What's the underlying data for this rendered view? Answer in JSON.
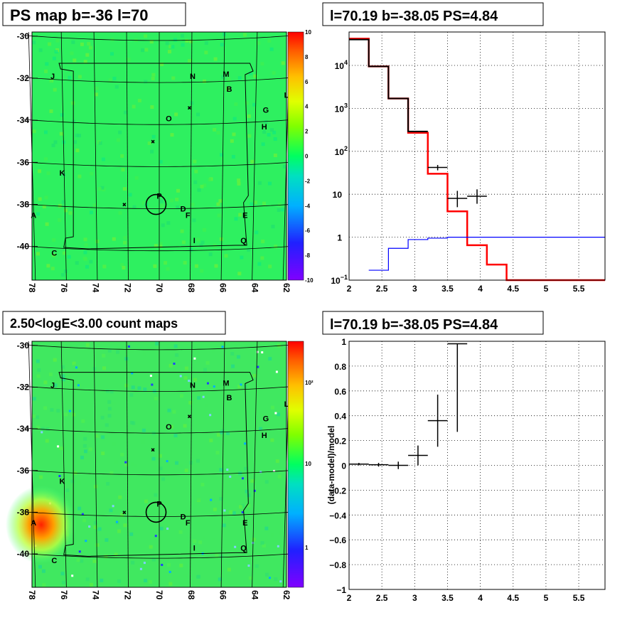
{
  "chart_data": [
    {
      "type": "heatmap",
      "title": "PS map b=-36 l=70",
      "x_ticks": [
        "78",
        "76",
        "74",
        "72",
        "70",
        "68",
        "66",
        "64",
        "62"
      ],
      "y_ticks": [
        "-30",
        "-32",
        "-34",
        "-36",
        "-38",
        "-40"
      ],
      "xlim": [
        78,
        62
      ],
      "ylim": [
        -41.6,
        -29.8
      ],
      "colorbar_ticks": [
        "10",
        "8",
        "6",
        "4",
        "2",
        "0",
        "-2",
        "-4",
        "-6",
        "-8",
        "-10"
      ],
      "zlim": [
        -10,
        10
      ],
      "sources": [
        {
          "label": "J",
          "l": 76.7,
          "b": -31.9
        },
        {
          "label": "N",
          "l": 67.9,
          "b": -31.9
        },
        {
          "label": "M",
          "l": 65.8,
          "b": -31.8
        },
        {
          "label": "B",
          "l": 65.6,
          "b": -32.5
        },
        {
          "label": "L",
          "l": 62.0,
          "b": -32.8
        },
        {
          "label": "G",
          "l": 63.3,
          "b": -33.5
        },
        {
          "label": "O",
          "l": 69.4,
          "b": -33.9
        },
        {
          "label": "H",
          "l": 63.4,
          "b": -34.3
        },
        {
          "label": "K",
          "l": 76.1,
          "b": -36.5
        },
        {
          "label": "P",
          "l": 70.0,
          "b": -37.6
        },
        {
          "label": "D",
          "l": 68.5,
          "b": -38.2
        },
        {
          "label": "F",
          "l": 68.2,
          "b": -38.5
        },
        {
          "label": "A",
          "l": 77.9,
          "b": -38.5
        },
        {
          "label": "E",
          "l": 64.6,
          "b": -38.5
        },
        {
          "label": "I",
          "l": 67.8,
          "b": -39.7
        },
        {
          "label": "Q",
          "l": 64.7,
          "b": -39.7
        },
        {
          "label": "C",
          "l": 76.6,
          "b": -40.3
        }
      ]
    },
    {
      "type": "line",
      "title": "l=70.19 b=-38.05 PS=4.84",
      "x_ticks": [
        "2",
        "2.5",
        "3",
        "3.5",
        "4",
        "4.5",
        "5",
        "5.5"
      ],
      "y_ticks": [
        "10^1",
        "10^4",
        "10^3",
        "10^2",
        "10",
        "1",
        "10^-1"
      ],
      "xlim": [
        2,
        5.9
      ],
      "ylim": [
        0.1,
        60000
      ],
      "yscale": "log",
      "grid": true,
      "series": [
        {
          "color": "#ff0000",
          "steps": [
            [
              2.0,
              2.3,
              42000
            ],
            [
              2.3,
              2.6,
              9500
            ],
            [
              2.6,
              2.9,
              1700
            ],
            [
              2.9,
              3.2,
              270
            ],
            [
              3.2,
              3.5,
              30
            ],
            [
              3.5,
              3.8,
              4
            ],
            [
              3.8,
              4.1,
              0.65
            ],
            [
              4.1,
              4.4,
              0.23
            ],
            [
              4.4,
              5.9,
              0.1
            ]
          ]
        },
        {
          "color": "#000000",
          "steps": [
            [
              2.0,
              2.3,
              40000
            ],
            [
              2.3,
              2.6,
              9500
            ],
            [
              2.6,
              2.9,
              1700
            ],
            [
              2.9,
              3.2,
              290
            ]
          ]
        },
        {
          "color": "#0000ff",
          "steps": [
            [
              2.3,
              2.6,
              0.17
            ],
            [
              2.6,
              2.9,
              0.55
            ],
            [
              2.9,
              3.2,
              0.88
            ],
            [
              3.2,
              3.5,
              0.95
            ],
            [
              3.5,
              5.9,
              1.0
            ]
          ]
        }
      ],
      "points": [
        {
          "x": 3.35,
          "y": 42,
          "xerr": 0.15,
          "ylo": 36,
          "yhi": 48
        },
        {
          "x": 3.65,
          "y": 8,
          "xerr": 0.15,
          "ylo": 5,
          "yhi": 12
        },
        {
          "x": 3.95,
          "y": 9,
          "xerr": 0.15,
          "ylo": 6,
          "yhi": 13
        }
      ]
    },
    {
      "type": "heatmap",
      "title": "2.50<logE<3.00 count maps",
      "x_ticks": [
        "78",
        "76",
        "74",
        "72",
        "70",
        "68",
        "66",
        "64",
        "62"
      ],
      "y_ticks": [
        "-30",
        "-32",
        "-34",
        "-36",
        "-38",
        "-40"
      ],
      "xlim": [
        78,
        62
      ],
      "ylim": [
        -41.6,
        -29.8
      ],
      "zscale": "log",
      "colorbar_ticks": [
        "10²",
        "10",
        "1"
      ]
    },
    {
      "type": "scatter",
      "title": "l=70.19 b=-38.05 PS=4.84",
      "ylabel": "(data-model)/model",
      "x_ticks": [
        "2",
        "2.5",
        "3",
        "3.5",
        "4",
        "4.5",
        "5",
        "5.5"
      ],
      "y_ticks": [
        "1",
        "0.8",
        "0.6",
        "0.4",
        "0.2",
        "0",
        "−0.2",
        "−0.4",
        "−0.6",
        "−0.8",
        "−1"
      ],
      "xlim": [
        2,
        5.9
      ],
      "ylim": [
        -1,
        1
      ],
      "grid": true,
      "points": [
        {
          "x": 2.15,
          "y": 0.01,
          "xerr": 0.15,
          "yerr": 0.01
        },
        {
          "x": 2.45,
          "y": 0.005,
          "xerr": 0.15,
          "yerr": 0.015
        },
        {
          "x": 2.75,
          "y": 0.0,
          "xerr": 0.15,
          "yerr": 0.03
        },
        {
          "x": 3.05,
          "y": 0.08,
          "xerr": 0.15,
          "yerr": 0.08
        },
        {
          "x": 3.35,
          "y": 0.36,
          "xerr": 0.15,
          "yerr": 0.21
        },
        {
          "x": 3.65,
          "y": 0.98,
          "xerr": 0.15,
          "ylo": 0.27,
          "yhi": 0.98
        }
      ]
    }
  ]
}
